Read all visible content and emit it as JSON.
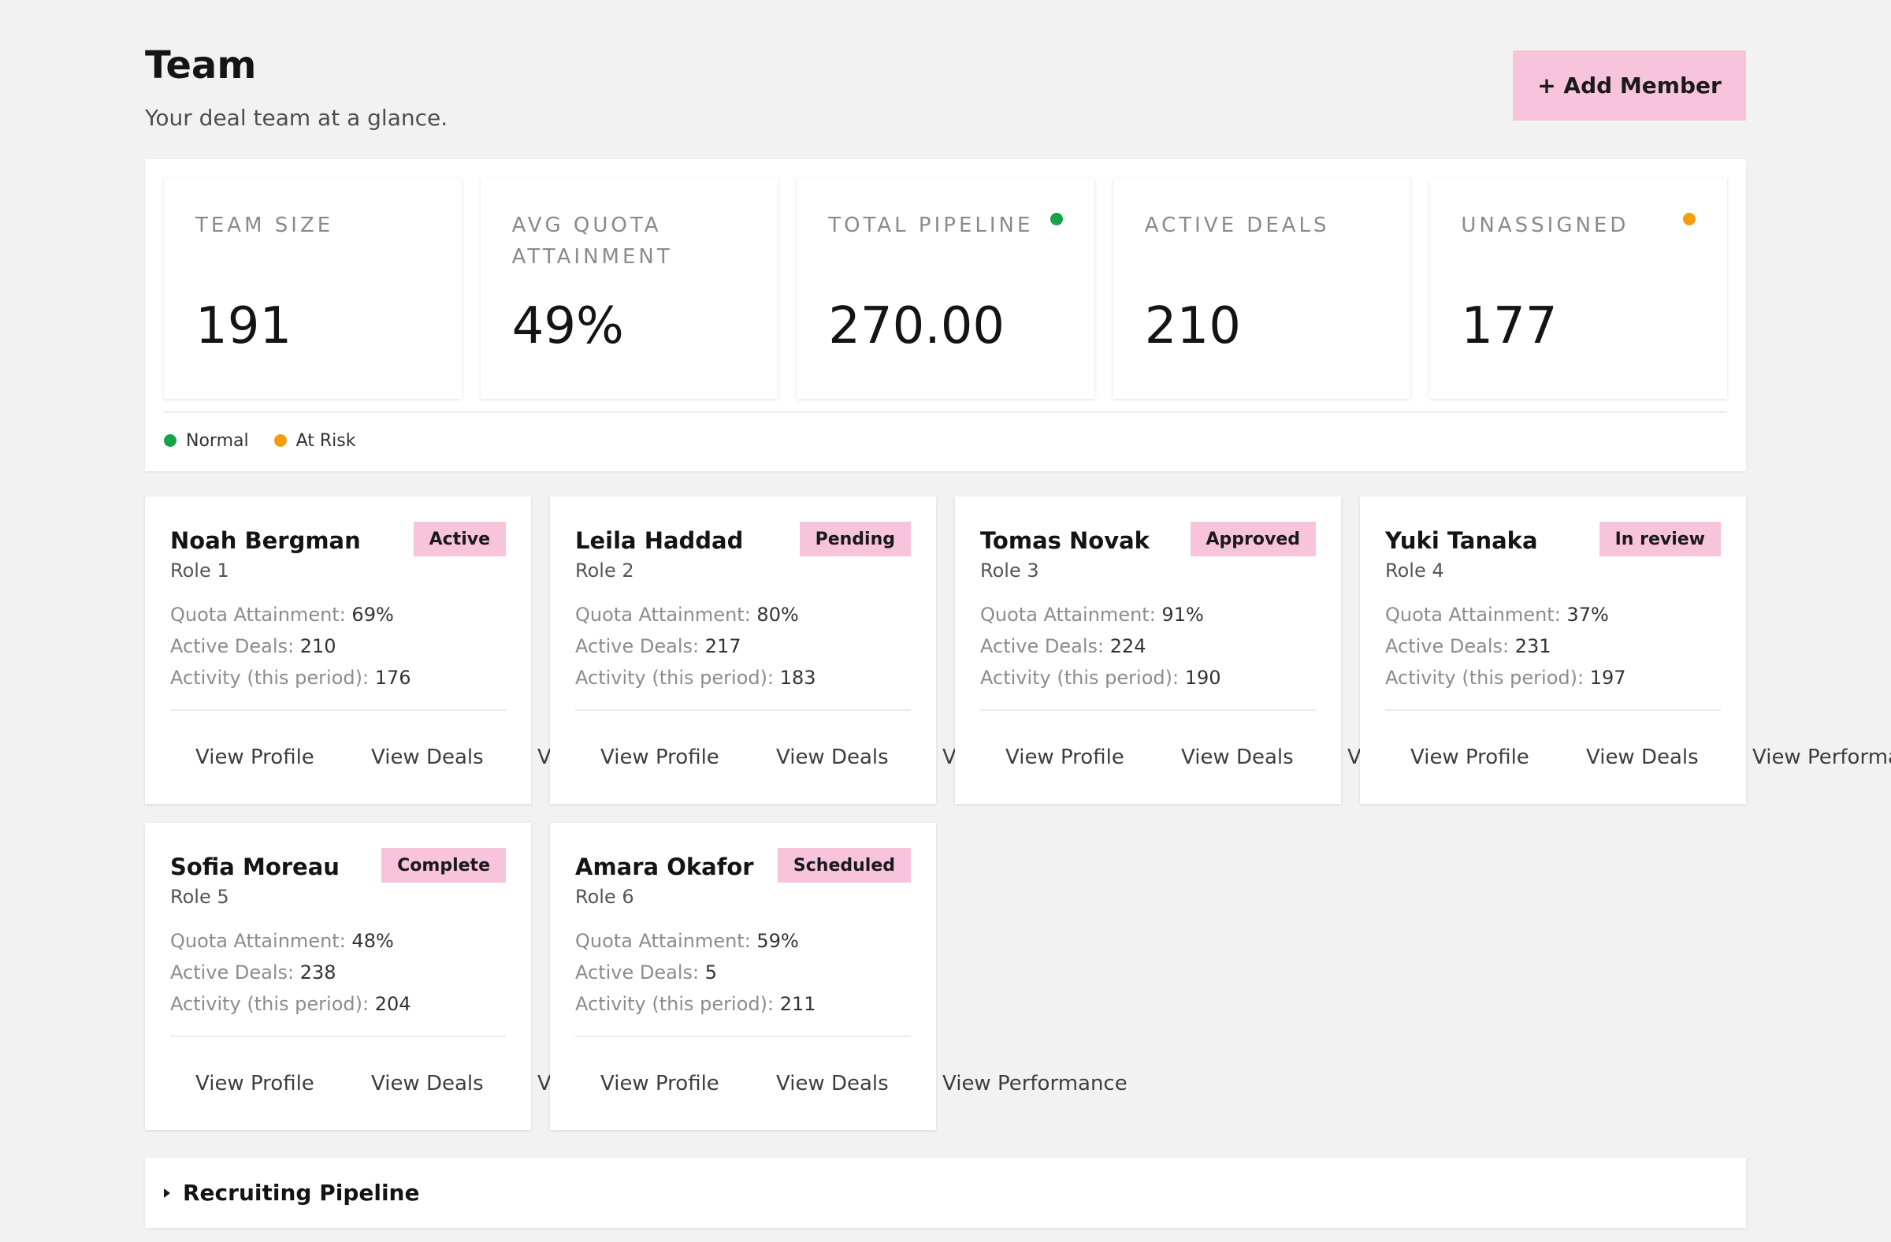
{
  "header": {
    "title": "Team",
    "subtitle": "Your deal team at a glance.",
    "add_button": "+ Add Member"
  },
  "kpis": [
    {
      "label": "TEAM SIZE",
      "value": "191",
      "dot": null
    },
    {
      "label": "AVG QUOTA ATTAINMENT",
      "value": "49%",
      "dot": null
    },
    {
      "label": "TOTAL PIPELINE",
      "value": "270.00",
      "dot": "#16a34a"
    },
    {
      "label": "ACTIVE DEALS",
      "value": "210",
      "dot": null
    },
    {
      "label": "UNASSIGNED",
      "value": "177",
      "dot": "#f59e0b"
    }
  ],
  "legend": [
    {
      "label": "Normal",
      "color": "#16a34a"
    },
    {
      "label": "At Risk",
      "color": "#f59e0b"
    }
  ],
  "labels": {
    "quota": "Quota Attainment: ",
    "deals": "Active Deals: ",
    "activity": "Activity (this period): "
  },
  "actions": {
    "profile": "View Profile",
    "deals": "View Deals",
    "performance": "View Performance"
  },
  "members": [
    {
      "name": "Noah Bergman",
      "status": "Active",
      "role": "Role 1",
      "quota": "69%",
      "deals": "210",
      "activity": "176"
    },
    {
      "name": "Leila Haddad",
      "status": "Pending",
      "role": "Role 2",
      "quota": "80%",
      "deals": "217",
      "activity": "183"
    },
    {
      "name": "Tomas Novak",
      "status": "Approved",
      "role": "Role 3",
      "quota": "91%",
      "deals": "224",
      "activity": "190"
    },
    {
      "name": "Yuki Tanaka",
      "status": "In review",
      "role": "Role 4",
      "quota": "37%",
      "deals": "231",
      "activity": "197"
    },
    {
      "name": "Sofia Moreau",
      "status": "Complete",
      "role": "Role 5",
      "quota": "48%",
      "deals": "238",
      "activity": "204"
    },
    {
      "name": "Amara Okafor",
      "status": "Scheduled",
      "role": "Role 6",
      "quota": "59%",
      "deals": "5",
      "activity": "211"
    }
  ],
  "collapsible": {
    "label": "Recruiting Pipeline"
  },
  "colors": {
    "accent": "#f7c4dc",
    "background": "#f2f2f2"
  }
}
